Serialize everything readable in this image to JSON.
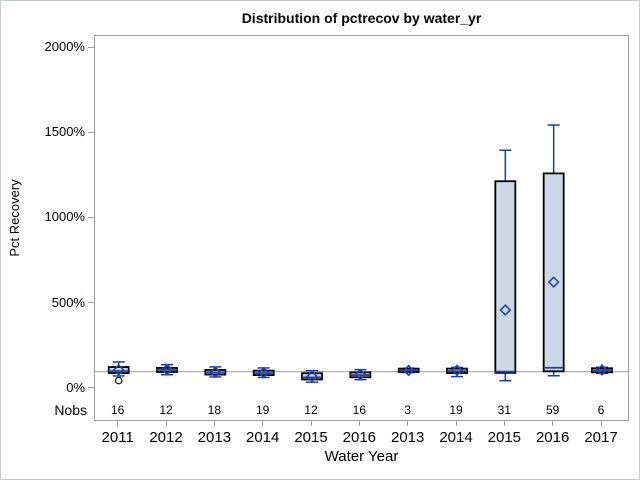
{
  "chart_data": {
    "type": "boxplot",
    "title": "Distribution of pctrecov by water_yr",
    "xlabel": "Water Year",
    "ylabel": "Pct Recovery",
    "nobs_label": "Nobs",
    "y_ticks": [
      0,
      500,
      1000,
      1500,
      2000
    ],
    "y_tick_suffix": "%",
    "ylim": [
      0,
      2000
    ],
    "reference_line": 100,
    "grid": false,
    "legend": "none",
    "colors": {
      "box_fill": "#cdd7e6",
      "box_border": "#000000",
      "whisker": "#1c3da0",
      "median": "#2244aa",
      "mean_marker": "#2444ad",
      "outlier": "#222222",
      "frame": "#9a9ea3",
      "reference": "#a6a6a6"
    },
    "categories": [
      {
        "year": "2011",
        "nobs": 16,
        "low": 75,
        "q1": 92,
        "median": 104,
        "q3": 127,
        "high": 157,
        "mean": 110,
        "outliers": [
          48
        ]
      },
      {
        "year": "2012",
        "nobs": 12,
        "low": 82,
        "q1": 98,
        "median": 110,
        "q3": 122,
        "high": 141,
        "mean": 112,
        "outliers": []
      },
      {
        "year": "2013",
        "nobs": 18,
        "low": 69,
        "q1": 83,
        "median": 96,
        "q3": 110,
        "high": 128,
        "mean": 97,
        "outliers": []
      },
      {
        "year": "2014",
        "nobs": 19,
        "low": 66,
        "q1": 80,
        "median": 92,
        "q3": 106,
        "high": 122,
        "mean": 94,
        "outliers": []
      },
      {
        "year": "2015",
        "nobs": 12,
        "low": 38,
        "q1": 54,
        "median": 66,
        "q3": 91,
        "high": 106,
        "mean": 72,
        "outliers": []
      },
      {
        "year": "2016",
        "nobs": 16,
        "low": 53,
        "q1": 67,
        "median": 80,
        "q3": 96,
        "high": 112,
        "mean": 83,
        "outliers": []
      },
      {
        "year": "2013",
        "nobs": 3,
        "low": 95,
        "q1": 98,
        "median": 106,
        "q3": 118,
        "high": 120,
        "mean": 107,
        "outliers": []
      },
      {
        "year": "2014",
        "nobs": 19,
        "low": 71,
        "q1": 92,
        "median": 103,
        "q3": 118,
        "high": 125,
        "mean": 108,
        "outliers": []
      },
      {
        "year": "2015",
        "nobs": 31,
        "low": 47,
        "q1": 93,
        "median": 100,
        "q3": 1218,
        "high": 1400,
        "mean": 462,
        "outliers": []
      },
      {
        "year": "2016",
        "nobs": 59,
        "low": 76,
        "q1": 102,
        "median": 123,
        "q3": 1264,
        "high": 1548,
        "mean": 626,
        "outliers": []
      },
      {
        "year": "2017",
        "nobs": 6,
        "low": 90,
        "q1": 96,
        "median": 108,
        "q3": 120,
        "high": 126,
        "mean": 110,
        "outliers": []
      }
    ]
  }
}
